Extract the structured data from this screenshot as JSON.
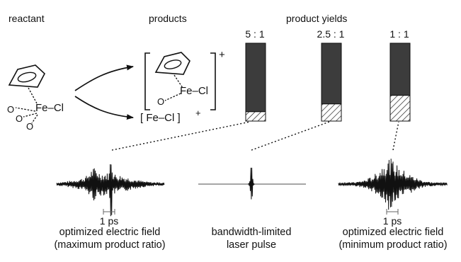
{
  "headers": {
    "reactant": "reactant",
    "products": "products",
    "yields": "product yields"
  },
  "reactant": {
    "formula": "Fe–Cl",
    "carbonyl": "O"
  },
  "products": {
    "complex_formula": "Fe–Cl",
    "complex_charge": "+",
    "ion_formula": "[ Fe–Cl ]",
    "ion_charge": "+"
  },
  "bars": [
    {
      "ratio": "5 : 1",
      "minor_fraction": 0.12
    },
    {
      "ratio": "2.5 : 1",
      "minor_fraction": 0.22
    },
    {
      "ratio": "1 : 1",
      "minor_fraction": 0.33
    }
  ],
  "signals": [
    {
      "scale": "1 ps",
      "caption_line1": "optimized electric field",
      "caption_line2": "(maximum product ratio)"
    },
    {
      "scale": "",
      "caption_line1": "bandwidth-limited",
      "caption_line2": "laser pulse"
    },
    {
      "scale": "1 ps",
      "caption_line1": "optimized electric field",
      "caption_line2": "(minimum product ratio)"
    }
  ],
  "colors": {
    "bar_fill": "#3c3c3c",
    "line": "#111111"
  }
}
